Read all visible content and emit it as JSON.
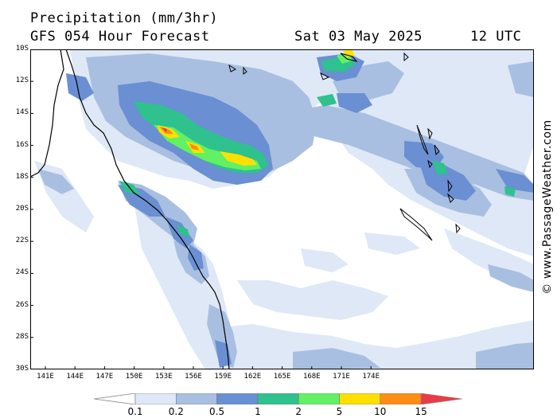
{
  "header": {
    "title": "Precipitation (mm/3hr)",
    "subtitle": "GFS 054 Hour Forecast",
    "date": "Sat 03 May 2025",
    "time": "12 UTC"
  },
  "credit": "© www.PassageWeather.com",
  "map": {
    "lat_labels": [
      "10S",
      "12S",
      "14S",
      "16S",
      "18S",
      "20S",
      "22S",
      "24S",
      "26S",
      "28S",
      "30S"
    ],
    "lon_labels": [
      "141E",
      "144E",
      "147E",
      "150E",
      "153E",
      "156E",
      "159E",
      "162E",
      "165E",
      "168E",
      "171E",
      "174E"
    ],
    "land_fill": "#ffffff",
    "coast_color": "#000000"
  },
  "legend": {
    "thresholds": [
      "0.1",
      "0.2",
      "0.5",
      "1",
      "2",
      "5",
      "10",
      "15"
    ],
    "colors": [
      "#ffffff",
      "#dfe8f6",
      "#a9bfe1",
      "#6a8fd2",
      "#2fc18e",
      "#62f064",
      "#ffe000",
      "#ff8c14",
      "#ea3c46"
    ]
  }
}
